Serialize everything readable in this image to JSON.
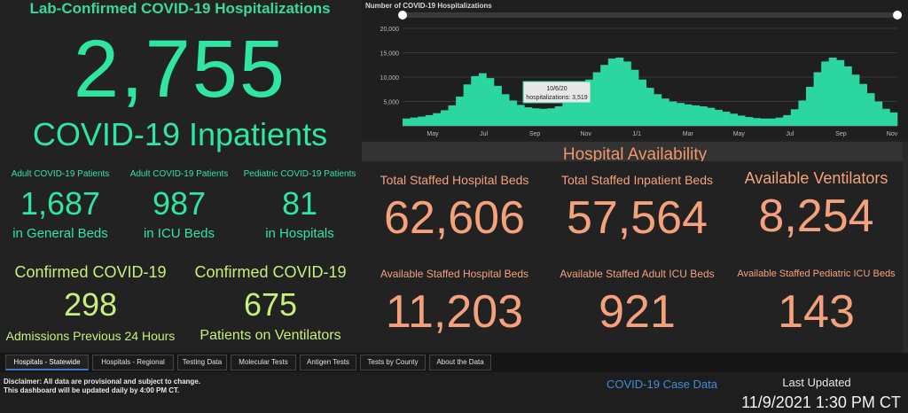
{
  "left": {
    "title": "Lab-Confirmed COVID-19 Hospitalizations",
    "total": "2,755",
    "total_label": "COVID-19 Inpatients",
    "cards": [
      {
        "header": "Adult COVID-19 Patients",
        "value": "1,687",
        "sub": "in General Beds"
      },
      {
        "header": "Adult COVID-19 Patients",
        "value": "987",
        "sub": "in ICU Beds"
      },
      {
        "header": "Pediatric COVID-19 Patients",
        "value": "81",
        "sub": "in Hospitals"
      }
    ],
    "confirmed": [
      {
        "header": "Confirmed COVID-19",
        "value": "298",
        "sub": "Admissions Previous 24 Hours"
      },
      {
        "header": "Confirmed COVID-19",
        "value": "675",
        "sub": "Patients on Ventilators"
      }
    ]
  },
  "chart_data": {
    "type": "bar",
    "title": "Number of COVID-19 Hospitalizations",
    "x_ticks": [
      "May",
      "Jul",
      "Sep",
      "Nov",
      "1/1",
      "Mar",
      "May",
      "Jul",
      "Sep",
      "Nov"
    ],
    "y_ticks": [
      "20,000",
      "15,000",
      "10,000",
      "5,000"
    ],
    "ylim": [
      0,
      20000
    ],
    "color": "#2bd6a0",
    "tooltip": {
      "date": "10/6/20",
      "label": "hospitalizations: 3,519"
    },
    "series": [
      {
        "values": [
          1500,
          1700,
          1900,
          2200,
          2600,
          3200,
          4200,
          6000,
          8500,
          10200,
          10800,
          9800,
          8200,
          6500,
          5200,
          4300,
          3800,
          3600,
          3500,
          3600,
          4000,
          5000,
          6500,
          8000,
          9500,
          11000,
          12500,
          13800,
          14000,
          13200,
          11500,
          9500,
          7800,
          6500,
          5600,
          5000,
          4700,
          4400,
          4200,
          4000,
          3700,
          3300,
          2900,
          2500,
          2100,
          1800,
          1600,
          1500,
          1500,
          1700,
          2200,
          3400,
          5200,
          8000,
          11000,
          13200,
          14000,
          13500,
          12200,
          10500,
          8600,
          6700,
          5000,
          3500,
          2755
        ]
      }
    ]
  },
  "availability": {
    "title": "Hospital Availability",
    "cards": [
      {
        "header": "Total Staffed Hospital Beds",
        "value": "62,606"
      },
      {
        "header": "Total Staffed Inpatient Beds",
        "value": "57,564"
      },
      {
        "header": "Available Ventilators",
        "value": "8,254"
      },
      {
        "header": "Available Staffed Hospital Beds",
        "value": "11,203"
      },
      {
        "header": "Available Staffed Adult ICU Beds",
        "value": "921"
      },
      {
        "header": "Available Staffed Pediatric ICU Beds",
        "value": "143"
      }
    ]
  },
  "tabs": [
    "Hospitals - Statewide",
    "Hospitals - Regional",
    "Testing Data",
    "Molecular Tests",
    "Antigen Tests",
    "Tests by County",
    "About the Data"
  ],
  "footer": {
    "disclaimer_1": "Disclaimer: All data are provisional and subject to change.",
    "disclaimer_2": "This dashboard will be updated daily by 4:00 PM CT.",
    "case_link": "COVID-19 Case Data",
    "updated_label": "Last Updated",
    "updated_value": "11/9/2021 1:30 PM CT"
  }
}
